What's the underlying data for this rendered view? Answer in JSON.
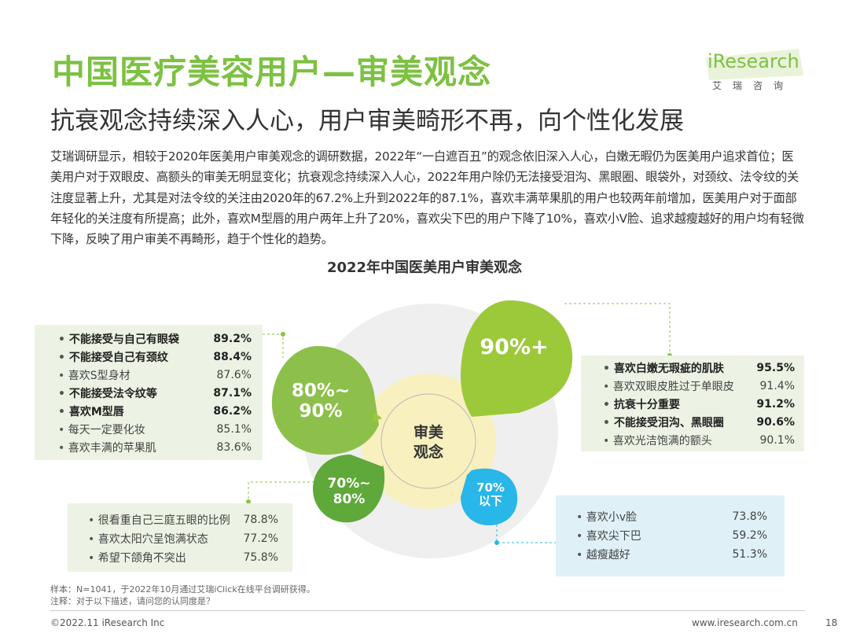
{
  "header": {
    "title": "中国医疗美容用户—审美观念",
    "subtitle": "抗衰观念持续深入人心，用户审美畸形不再，向个性化发展",
    "logo_text": "iResearch",
    "logo_cn": "艾瑞咨询"
  },
  "body": {
    "paragraph": "艾瑞调研显示，相较于2020年医美用户审美观念的调研数据，2022年“一白遮百丑”的观念依旧深入人心，白嫩无暇仍为医美用户追求首位；医美用户对于双眼皮、高额头的审美无明显变化；抗衰观念持续深入人心，2022年用户除仍无法接受泪沟、黑眼圈、眼袋外，对颈纹、法令纹的关注度显著上升，尤其是对法令纹的关注由2020年的67.2%上升到2022年的87.1%，喜欢丰满苹果肌的用户也较两年前增加，医美用户对于面部年轻化的关注度有所提高；此外，喜欢M型唇的用户两年上升了20%，喜欢尖下巴的用户下降了10%，喜欢小V脸、追求越瘦越好的用户均有轻微下降，反映了用户审美不再畸形，趋于个性化的趋势。"
  },
  "diagram": {
    "title": "2022年中国医美用户审美观念",
    "center_label_1": "审美",
    "center_label_2": "观念",
    "bubbles": {
      "b90": "90%+",
      "b8090_1": "80%~",
      "b8090_2": "90%",
      "b7080_1": "70%~",
      "b7080_2": "80%",
      "b70_1": "70%",
      "b70_2": "以下"
    },
    "colors": {
      "lightGreen": "#9cc93a",
      "midGreen": "#8cc04a",
      "darkGreen": "#5fa83a",
      "blue": "#29b6e8",
      "core": "#f8f0bf"
    },
    "group_left": [
      {
        "label": "不能接受与自己有眼袋",
        "value": "89.2%",
        "bold": true
      },
      {
        "label": "不能接受自己有颈纹",
        "value": "88.4%",
        "bold": true
      },
      {
        "label": "喜欢S型身材",
        "value": "87.6%",
        "bold": false
      },
      {
        "label": "不能接受法令纹等",
        "value": "87.1%",
        "bold": true
      },
      {
        "label": "喜欢M型唇",
        "value": "86.2%",
        "bold": true
      },
      {
        "label": "每天一定要化妆",
        "value": "85.1%",
        "bold": false
      },
      {
        "label": "喜欢丰满的苹果肌",
        "value": "83.6%",
        "bold": false
      }
    ],
    "group_right": [
      {
        "label": "喜欢白嫩无瑕疵的肌肤",
        "value": "95.5%",
        "bold": true
      },
      {
        "label": "喜欢双眼皮胜过于单眼皮",
        "value": "91.4%",
        "bold": false
      },
      {
        "label": "抗衰十分重要",
        "value": "91.2%",
        "bold": true
      },
      {
        "label": "不能接受泪沟、黑眼圈",
        "value": "90.6%",
        "bold": true
      },
      {
        "label": "喜欢光洁饱满的额头",
        "value": "90.1%",
        "bold": false
      }
    ],
    "group_bottom_left": [
      {
        "label": "很看重自己三庭五眼的比例",
        "value": "78.8%"
      },
      {
        "label": "喜欢太阳穴呈饱满状态",
        "value": "77.2%"
      },
      {
        "label": "希望下颌角不突出",
        "value": "75.8%"
      }
    ],
    "group_bottom_right": [
      {
        "label": "喜欢小v脸",
        "value": "73.8%"
      },
      {
        "label": "喜欢尖下巴",
        "value": "59.2%"
      },
      {
        "label": "越瘦越好",
        "value": "51.3%"
      }
    ]
  },
  "footer": {
    "note1": "样本：N=1041，于2022年10月通过艾瑞iClick在线平台调研获得。",
    "note2": "注释：对于以下描述，请问您的认同度是？",
    "copyright": "©2022.11 iResearch Inc",
    "url": "www.iresearch.com.cn",
    "page": "18"
  }
}
